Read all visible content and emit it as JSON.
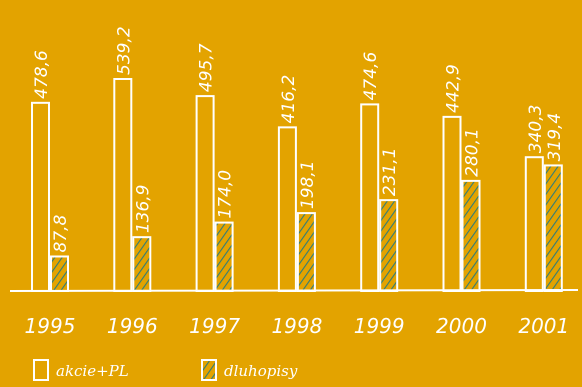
{
  "chart_data": {
    "type": "bar",
    "categories": [
      "1995",
      "1996",
      "1997",
      "1998",
      "1999",
      "2000",
      "2001"
    ],
    "series": [
      {
        "name": "akcie+PL",
        "values": [
          478.6,
          539.2,
          495.7,
          416.2,
          474.6,
          442.9,
          340.3
        ],
        "labels": [
          "478,6",
          "539,2",
          "495,7",
          "416,2",
          "474,6",
          "442,9",
          "340,3"
        ]
      },
      {
        "name": "dluhopisy",
        "values": [
          87.8,
          136.9,
          174.0,
          198.1,
          231.1,
          280.1,
          319.4
        ],
        "labels": [
          "87,8",
          "136,9",
          "174,0",
          "198,1",
          "231,1",
          "280,1",
          "319,4"
        ]
      }
    ],
    "ylim": [
      0,
      600
    ],
    "grid": false,
    "legend": "bottom-left"
  },
  "colors": {
    "background": "#E3A300",
    "outline": "#ffffff",
    "hatch": "#2E7D7A"
  }
}
